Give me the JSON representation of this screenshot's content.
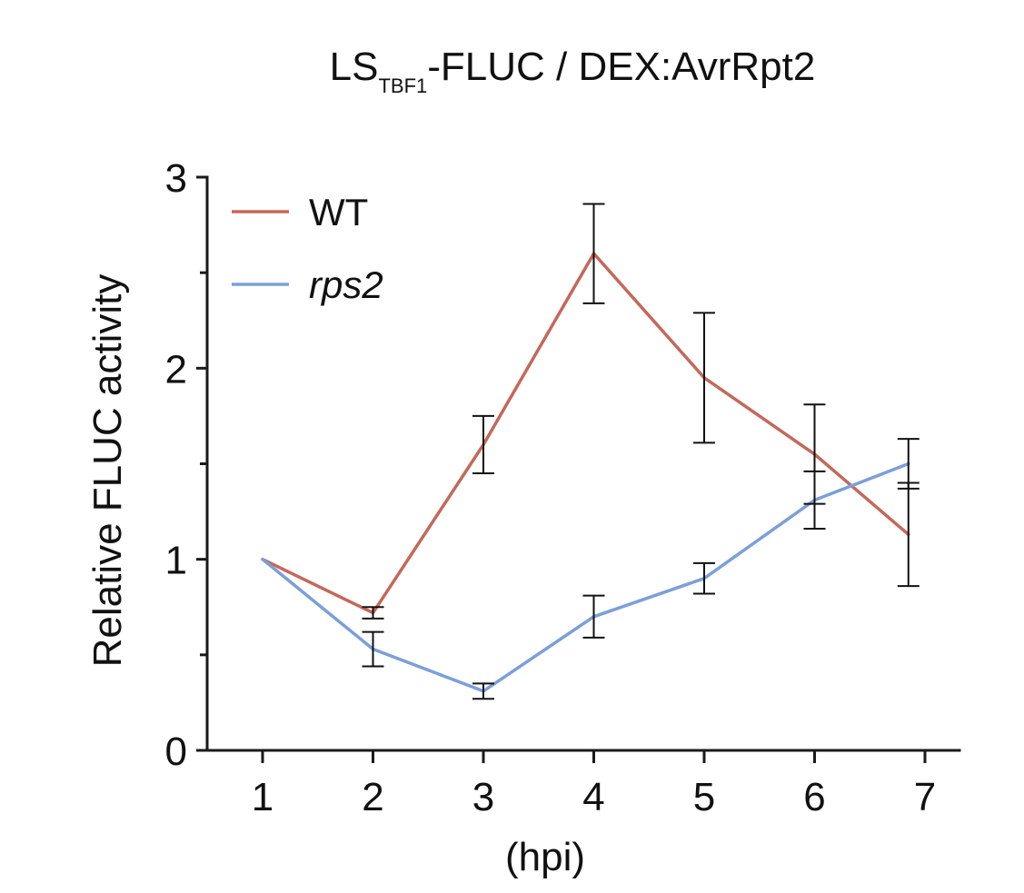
{
  "chart_data": {
    "type": "line",
    "title": {
      "prefix": "LS",
      "subscript": "TBF1",
      "suffix": "-FLUC / DEX:AvrRpt2"
    },
    "xlabel": "(hpi)",
    "ylabel": "Relative FLUC activity",
    "x": [
      1,
      2,
      3,
      4,
      5,
      6,
      7
    ],
    "x_ticks": [
      "1",
      "2",
      "3",
      "4",
      "5",
      "6",
      "7"
    ],
    "y_ticks": [
      "0",
      "1",
      "2",
      "3"
    ],
    "xlim": [
      0.5,
      7.05
    ],
    "ylim": [
      0,
      3
    ],
    "legend_position": "top-left",
    "series": [
      {
        "name": "WT",
        "italic": false,
        "color": "#c4685a",
        "x": [
          1,
          2,
          3,
          4,
          5,
          6,
          6.85
        ],
        "values": [
          1.0,
          0.72,
          1.6,
          2.6,
          1.95,
          1.55,
          1.13
        ],
        "errors": [
          0,
          0.03,
          0.15,
          0.26,
          0.34,
          0.26,
          0.27
        ]
      },
      {
        "name": "rps2",
        "italic": true,
        "color": "#7b9fd9",
        "x": [
          1,
          2,
          3,
          4,
          5,
          6,
          6.85
        ],
        "values": [
          1.0,
          0.53,
          0.31,
          0.7,
          0.9,
          1.31,
          1.5
        ],
        "errors": [
          0,
          0.09,
          0.04,
          0.11,
          0.08,
          0.15,
          0.13
        ]
      }
    ]
  }
}
